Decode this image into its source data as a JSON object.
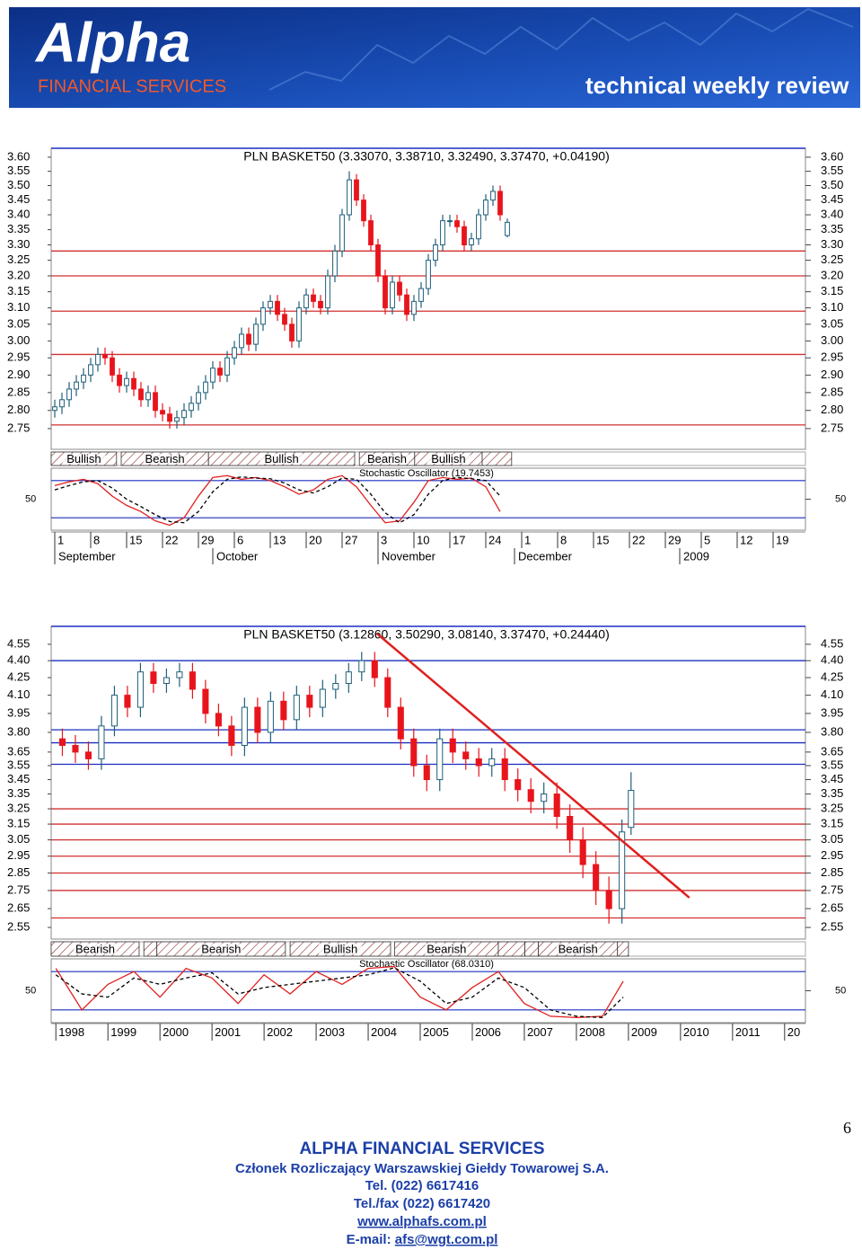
{
  "header": {
    "logo": "Alpha",
    "tagline": "FINANCIAL SERVICES",
    "subtitle": "technical weekly review"
  },
  "chart_data": [
    {
      "type": "candlestick",
      "title": "PLN BASKET50 (3.33070, 3.38710, 3.32490, 3.37470, +0.04190)",
      "log_scale": true,
      "ylim": [
        2.694,
        3.632
      ],
      "xlim": [
        -0.5,
        104.5
      ],
      "yticks": [
        2.75,
        {
          "value": 2.8,
          "label": "2.80"
        },
        2.85,
        {
          "value": 2.9,
          "label": "2.90"
        },
        2.95,
        {
          "value": 3.0,
          "label": "3.00"
        },
        3.05,
        {
          "value": 3.1,
          "label": "3.10"
        },
        3.15,
        {
          "value": 3.2,
          "label": "3.20"
        },
        3.25,
        {
          "value": 3.3,
          "label": "3.30"
        },
        3.35,
        {
          "value": 3.4,
          "label": "3.40"
        },
        3.45,
        {
          "value": 3.5,
          "label": "3.50"
        },
        3.55,
        {
          "value": 3.6,
          "label": "3.60"
        }
      ],
      "xticks": [
        {
          "value": 0,
          "label": "1"
        },
        {
          "value": 5,
          "label": "8"
        },
        {
          "value": 10,
          "label": "15"
        },
        {
          "value": 15,
          "label": "22"
        },
        {
          "value": 20,
          "label": "29"
        },
        {
          "value": 25,
          "label": "6"
        },
        {
          "value": 30,
          "label": "13"
        },
        {
          "value": 35,
          "label": "20"
        },
        {
          "value": 40,
          "label": "27"
        },
        {
          "value": 45,
          "label": "3"
        },
        {
          "value": 50,
          "label": "10"
        },
        {
          "value": 55,
          "label": "17"
        },
        {
          "value": 60,
          "label": "24"
        },
        {
          "value": 65,
          "label": "1"
        },
        {
          "value": 70,
          "label": "8"
        },
        {
          "value": 75,
          "label": "15"
        },
        {
          "value": 80,
          "label": "22"
        },
        {
          "value": 85,
          "label": "29"
        },
        {
          "value": 90,
          "label": "5"
        },
        {
          "value": 95,
          "label": "12"
        },
        {
          "value": 100,
          "label": "19"
        }
      ],
      "periods": [
        {
          "value": 0,
          "label": "September"
        },
        {
          "value": 22,
          "label": "October"
        },
        {
          "value": 45,
          "label": "November"
        },
        {
          "value": 64,
          "label": "December"
        },
        {
          "value": 87,
          "label": "2009"
        }
      ],
      "hlines": [
        {
          "value": 3.28,
          "color": "#d03030"
        },
        {
          "value": 3.2,
          "color": "#d03030"
        },
        {
          "value": 3.09,
          "color": "#d03030"
        },
        {
          "value": 2.96,
          "color": "#d03030"
        },
        {
          "value": 2.76,
          "color": "#d03030"
        }
      ],
      "up_color": "#ffffff",
      "down_color": "#e8141c",
      "outline_color": "#1f5f7a",
      "open": [
        2.8,
        2.81,
        2.83,
        2.86,
        2.88,
        2.9,
        2.93,
        2.96,
        2.95,
        2.9,
        2.87,
        2.89,
        2.86,
        2.83,
        2.85,
        2.8,
        2.79,
        2.77,
        2.78,
        2.8,
        2.82,
        2.85,
        2.88,
        2.92,
        2.9,
        2.95,
        2.98,
        3.02,
        2.99,
        3.05,
        3.1,
        3.12,
        3.08,
        3.05,
        3.0,
        3.1,
        3.14,
        3.12,
        3.1,
        3.2,
        3.28,
        3.4,
        3.52,
        3.45,
        3.38,
        3.3,
        3.2,
        3.1,
        3.18,
        3.14,
        3.08,
        3.12,
        3.16,
        3.25,
        3.3,
        3.38,
        3.38,
        3.36,
        3.3,
        3.32,
        3.4,
        3.45,
        3.48,
        3.3307
      ],
      "high": [
        2.83,
        2.85,
        2.88,
        2.9,
        2.92,
        2.95,
        2.98,
        2.98,
        2.97,
        2.92,
        2.91,
        2.91,
        2.88,
        2.87,
        2.87,
        2.82,
        2.81,
        2.8,
        2.82,
        2.84,
        2.87,
        2.9,
        2.94,
        2.94,
        2.97,
        3.0,
        3.04,
        3.04,
        3.07,
        3.12,
        3.14,
        3.14,
        3.1,
        3.07,
        3.12,
        3.16,
        3.16,
        3.14,
        3.22,
        3.3,
        3.42,
        3.55,
        3.54,
        3.47,
        3.4,
        3.32,
        3.22,
        3.2,
        3.2,
        3.16,
        3.14,
        3.18,
        3.27,
        3.32,
        3.4,
        3.4,
        3.4,
        3.38,
        3.34,
        3.42,
        3.47,
        3.5,
        3.5,
        3.3871
      ],
      "low": [
        2.78,
        2.79,
        2.81,
        2.84,
        2.86,
        2.88,
        2.91,
        2.93,
        2.88,
        2.85,
        2.85,
        2.84,
        2.81,
        2.81,
        2.78,
        2.77,
        2.75,
        2.75,
        2.76,
        2.78,
        2.8,
        2.83,
        2.86,
        2.88,
        2.88,
        2.93,
        2.96,
        2.97,
        2.97,
        3.03,
        3.08,
        3.06,
        3.03,
        2.98,
        2.98,
        3.08,
        3.1,
        3.08,
        3.08,
        3.18,
        3.26,
        3.38,
        3.43,
        3.36,
        3.28,
        3.18,
        3.08,
        3.08,
        3.12,
        3.06,
        3.06,
        3.1,
        3.14,
        3.23,
        3.28,
        3.36,
        3.34,
        3.28,
        3.28,
        3.3,
        3.38,
        3.43,
        3.38,
        3.3249
      ],
      "close": [
        2.81,
        2.83,
        2.86,
        2.88,
        2.9,
        2.93,
        2.96,
        2.95,
        2.9,
        2.87,
        2.89,
        2.86,
        2.83,
        2.85,
        2.8,
        2.79,
        2.77,
        2.78,
        2.8,
        2.82,
        2.85,
        2.88,
        2.92,
        2.9,
        2.95,
        2.98,
        3.02,
        2.99,
        3.05,
        3.1,
        3.12,
        3.08,
        3.05,
        3.0,
        3.1,
        3.14,
        3.12,
        3.1,
        3.2,
        3.28,
        3.4,
        3.52,
        3.45,
        3.38,
        3.3,
        3.2,
        3.1,
        3.18,
        3.14,
        3.08,
        3.12,
        3.16,
        3.25,
        3.3,
        3.38,
        3.38,
        3.36,
        3.3,
        3.32,
        3.4,
        3.45,
        3.48,
        3.4,
        3.3747
      ],
      "signals": [
        {
          "label": "Bullish",
          "from": -0.5,
          "to": 8.6
        },
        {
          "label": "Bearish",
          "from": 9.25,
          "to": 21.4
        },
        {
          "label": "Bullish",
          "from": 21.4,
          "to": 41.75
        },
        {
          "label": "Bearish",
          "from": 42.4,
          "to": 50.1
        },
        {
          "label": "Bullish",
          "from": 50.1,
          "to": 59.5
        },
        {
          "label": null,
          "from": 59.5,
          "to": 63.6
        }
      ],
      "stochastic": {
        "label": "Stochastic Oscillator (19.7453)",
        "ylim": [
          0,
          100
        ],
        "yticks": [
          50
        ],
        "levels": [
          20,
          80
        ],
        "level_color": "#1a2fc0",
        "x": [
          0,
          2,
          4,
          6,
          8,
          10,
          12,
          14,
          16,
          18,
          20,
          22,
          24,
          26,
          28,
          30,
          32,
          34,
          36,
          38,
          40,
          42,
          44,
          46,
          48,
          50,
          52,
          54,
          56,
          58,
          60,
          62
        ],
        "k": [
          72,
          78,
          82,
          75,
          55,
          40,
          30,
          15,
          8,
          20,
          55,
          85,
          88,
          82,
          85,
          80,
          70,
          58,
          65,
          82,
          88,
          70,
          40,
          12,
          15,
          45,
          80,
          85,
          82,
          84,
          70,
          30
        ],
        "d": [
          65,
          72,
          78,
          80,
          68,
          50,
          38,
          25,
          14,
          12,
          30,
          62,
          82,
          86,
          84,
          83,
          76,
          65,
          60,
          70,
          84,
          82,
          58,
          28,
          12,
          25,
          58,
          80,
          85,
          83,
          80,
          55
        ],
        "k_color": "#e02020",
        "d_color": "#000000"
      }
    },
    {
      "type": "candlestick",
      "title": "PLN BASKET50 (3.12860, 3.50290, 3.08140, 3.37470, +0.24440)",
      "log_scale": true,
      "ylim": [
        2.49,
        4.72
      ],
      "xlim": [
        1997.91,
        2012.4
      ],
      "yticks": [
        2.55,
        2.65,
        2.75,
        2.85,
        2.95,
        3.05,
        3.15,
        3.25,
        3.35,
        3.45,
        3.55,
        3.65,
        {
          "value": 3.8,
          "label": "3.80"
        },
        3.95,
        {
          "value": 4.1,
          "label": "4.10"
        },
        4.25,
        {
          "value": 4.4,
          "label": "4.40"
        },
        4.55
      ],
      "xticks": [
        1998,
        1999,
        2000,
        2001,
        2002,
        2003,
        2004,
        2005,
        2006,
        2007,
        2008,
        2009,
        2010,
        2011,
        {
          "value": 2012,
          "label": "20"
        }
      ],
      "hlines": [
        {
          "value": 4.4,
          "color": "#1a2fc0"
        },
        {
          "value": 3.82,
          "color": "#1a2fc0"
        },
        {
          "value": 3.72,
          "color": "#1a2fc0"
        },
        {
          "value": 3.56,
          "color": "#1a2fc0"
        },
        {
          "value": 3.25,
          "color": "#d03030"
        },
        {
          "value": 3.15,
          "color": "#d03030"
        },
        {
          "value": 3.05,
          "color": "#d03030"
        },
        {
          "value": 2.95,
          "color": "#d03030"
        },
        {
          "value": 2.85,
          "color": "#d03030"
        },
        {
          "value": 2.75,
          "color": "#d03030"
        },
        {
          "value": 2.6,
          "color": "#d03030"
        }
      ],
      "trendline": {
        "x": [
          2004.17,
          2010.17
        ],
        "y": [
          4.65,
          2.71
        ],
        "color": "#e02020"
      },
      "up_color": "#ffffff",
      "down_color": "#e8141c",
      "outline_color": "#1f5f7a",
      "x": [
        1998.125,
        1998.375,
        1998.625,
        1998.875,
        1999.125,
        1999.375,
        1999.625,
        1999.875,
        2000.125,
        2000.375,
        2000.625,
        2000.875,
        2001.125,
        2001.375,
        2001.625,
        2001.875,
        2002.125,
        2002.375,
        2002.625,
        2002.875,
        2003.125,
        2003.375,
        2003.625,
        2003.875,
        2004.125,
        2004.375,
        2004.625,
        2004.875,
        2005.125,
        2005.375,
        2005.625,
        2005.875,
        2006.125,
        2006.375,
        2006.625,
        2006.875,
        2007.125,
        2007.375,
        2007.625,
        2007.875,
        2008.125,
        2008.375,
        2008.625,
        2008.875,
        2009.05
      ],
      "open": [
        3.75,
        3.7,
        3.65,
        3.6,
        3.85,
        4.1,
        4.0,
        4.3,
        4.2,
        4.25,
        4.3,
        4.15,
        3.95,
        3.85,
        3.7,
        4.0,
        3.8,
        4.05,
        3.9,
        4.1,
        4.0,
        4.15,
        4.2,
        4.3,
        4.4,
        4.25,
        4.0,
        3.75,
        3.55,
        3.45,
        3.75,
        3.65,
        3.6,
        3.55,
        3.6,
        3.45,
        3.38,
        3.3,
        3.35,
        3.2,
        3.05,
        2.9,
        2.75,
        2.65,
        3.1286
      ],
      "high": [
        3.83,
        3.78,
        3.73,
        3.93,
        4.18,
        4.18,
        4.38,
        4.38,
        4.33,
        4.38,
        4.38,
        4.23,
        4.03,
        3.93,
        4.08,
        4.08,
        4.13,
        4.13,
        4.18,
        4.18,
        4.23,
        4.28,
        4.38,
        4.48,
        4.48,
        4.33,
        4.08,
        3.83,
        3.63,
        3.83,
        3.83,
        3.73,
        3.68,
        3.68,
        3.68,
        3.53,
        3.46,
        3.43,
        3.43,
        3.28,
        3.13,
        2.98,
        2.83,
        3.18,
        3.5029
      ],
      "low": [
        3.62,
        3.57,
        3.52,
        3.52,
        3.77,
        3.92,
        3.92,
        4.12,
        4.12,
        4.17,
        4.07,
        3.87,
        3.77,
        3.62,
        3.62,
        3.72,
        3.72,
        3.82,
        3.82,
        3.92,
        3.92,
        4.07,
        4.12,
        4.22,
        4.17,
        3.92,
        3.67,
        3.47,
        3.37,
        3.37,
        3.57,
        3.52,
        3.47,
        3.47,
        3.37,
        3.3,
        3.22,
        3.22,
        3.12,
        2.97,
        2.82,
        2.67,
        2.57,
        2.57,
        3.0814
      ],
      "close": [
        3.7,
        3.65,
        3.6,
        3.85,
        4.1,
        4.0,
        4.3,
        4.2,
        4.25,
        4.3,
        4.15,
        3.95,
        3.85,
        3.7,
        4.0,
        3.8,
        4.05,
        3.9,
        4.1,
        4.0,
        4.15,
        4.2,
        4.3,
        4.4,
        4.25,
        4.0,
        3.75,
        3.55,
        3.45,
        3.75,
        3.65,
        3.6,
        3.55,
        3.6,
        3.45,
        3.38,
        3.3,
        3.35,
        3.2,
        3.05,
        2.9,
        2.75,
        2.65,
        3.1,
        3.3747
      ],
      "signals": [
        {
          "label": "Bearish",
          "from": 1997.91,
          "to": 1999.6
        },
        {
          "label": null,
          "from": 1999.69,
          "to": 1999.94
        },
        {
          "label": "Bearish",
          "from": 1999.94,
          "to": 2002.41
        },
        {
          "label": "Bullish",
          "from": 2002.5,
          "to": 2004.43
        },
        {
          "label": "Bearish",
          "from": 2004.51,
          "to": 2006.5
        },
        {
          "label": null,
          "from": 2006.5,
          "to": 2007.01
        },
        {
          "label": null,
          "from": 2007.01,
          "to": 2007.27
        },
        {
          "label": "Bearish",
          "from": 2007.27,
          "to": 2008.79
        },
        {
          "label": null,
          "from": 2008.79,
          "to": 2009.0
        }
      ],
      "stochastic": {
        "label": "Stochastic Oscillator (68.0310)",
        "ylim": [
          0,
          100
        ],
        "yticks": [
          50
        ],
        "levels": [
          20,
          80
        ],
        "level_color": "#1a2fc0",
        "x": [
          1998.0,
          1998.5,
          1999.0,
          1999.5,
          2000.0,
          2000.5,
          2001.0,
          2001.5,
          2002.0,
          2002.5,
          2003.0,
          2003.5,
          2004.0,
          2004.5,
          2005.0,
          2005.5,
          2006.0,
          2006.5,
          2007.0,
          2007.5,
          2008.0,
          2008.5,
          2008.9
        ],
        "k": [
          85,
          20,
          60,
          80,
          40,
          85,
          70,
          30,
          75,
          45,
          80,
          60,
          85,
          88,
          40,
          20,
          55,
          80,
          30,
          10,
          8,
          10,
          65
        ],
        "d": [
          75,
          45,
          40,
          70,
          60,
          70,
          78,
          45,
          55,
          60,
          65,
          70,
          75,
          86,
          65,
          30,
          40,
          70,
          55,
          20,
          10,
          8,
          40
        ],
        "k_color": "#e02020",
        "d_color": "#000000"
      }
    }
  ],
  "page_number": 6,
  "footer": {
    "company": "ALPHA FINANCIAL SERVICES",
    "member": "Członek Rozliczający Warszawskiej Giełdy Towarowej S.A.",
    "tel": "Tel. (022) 6617416",
    "fax": "Tel./fax (022) 6617420",
    "website": "www.alphafs.com.pl",
    "email_label": "E-mail:",
    "email": "afs@wgt.com.pl"
  }
}
